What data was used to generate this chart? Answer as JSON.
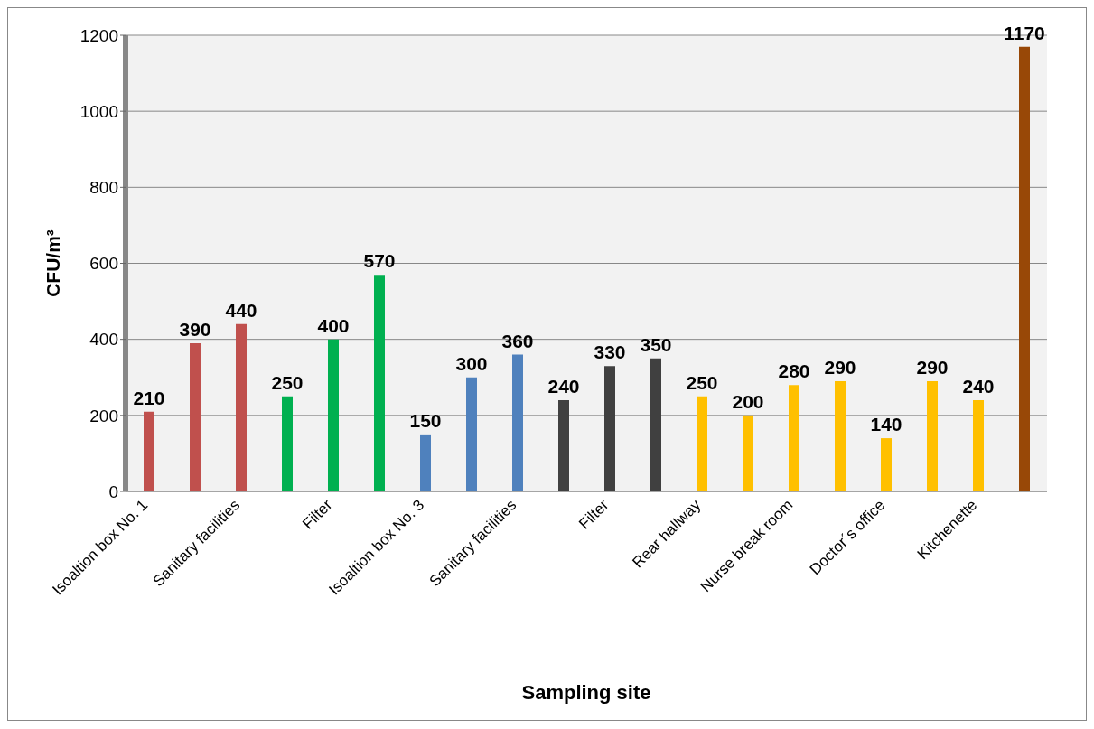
{
  "chart_data": {
    "type": "bar",
    "xlabel": "Sampling site",
    "ylabel": "CFU/m³",
    "categories": [
      "Isoaltion box No. 1",
      null,
      "Sanitary facilities",
      null,
      "Filter",
      null,
      "Isoaltion box No. 3",
      null,
      "Sanitary facilities",
      null,
      "Filter",
      null,
      "Rear hallway",
      null,
      "Nurse break room",
      null,
      "Doctor´s office",
      null,
      "Kitchenette",
      null
    ],
    "values": [
      210,
      390,
      440,
      250,
      400,
      570,
      150,
      300,
      360,
      240,
      330,
      350,
      250,
      200,
      280,
      290,
      140,
      290,
      240,
      1170
    ],
    "colors": [
      "#c0504d",
      "#c0504d",
      "#c0504d",
      "#00b050",
      "#00b050",
      "#00b050",
      "#4f81bd",
      "#4f81bd",
      "#4f81bd",
      "#404040",
      "#404040",
      "#404040",
      "#ffc000",
      "#ffc000",
      "#ffc000",
      "#ffc000",
      "#ffc000",
      "#ffc000",
      "#ffc000",
      "#984807"
    ],
    "ylim": [
      0,
      1200
    ],
    "yticks": [
      0,
      200,
      400,
      600,
      800,
      1000,
      1200
    ],
    "grid": "y",
    "data_labels": true
  }
}
